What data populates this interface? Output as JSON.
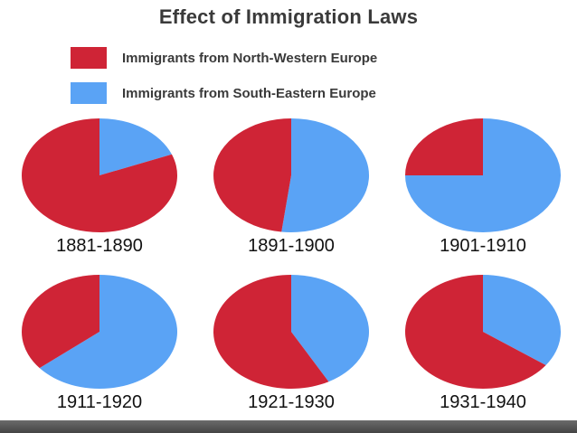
{
  "chart_data": {
    "type": "pie",
    "title": "Effect of Immigration Laws",
    "legend": [
      {
        "name": "Immigrants from North-Western Europe",
        "color": "#cf2436"
      },
      {
        "name": "Immigrants from South-Eastern Europe",
        "color": "#5aa3f5"
      }
    ],
    "legend_position": "top",
    "pies": [
      {
        "label": "1881-1890",
        "values": {
          "north_western": 81,
          "south_eastern": 19
        }
      },
      {
        "label": "1891-1900",
        "values": {
          "north_western": 48,
          "south_eastern": 52
        }
      },
      {
        "label": "1901-1910",
        "values": {
          "north_western": 25,
          "south_eastern": 75
        }
      },
      {
        "label": "1911-1920",
        "values": {
          "north_western": 36,
          "south_eastern": 64
        }
      },
      {
        "label": "1921-1930",
        "values": {
          "north_western": 58,
          "south_eastern": 42
        }
      },
      {
        "label": "1931-1940",
        "values": {
          "north_western": 65,
          "south_eastern": 35
        }
      }
    ]
  }
}
